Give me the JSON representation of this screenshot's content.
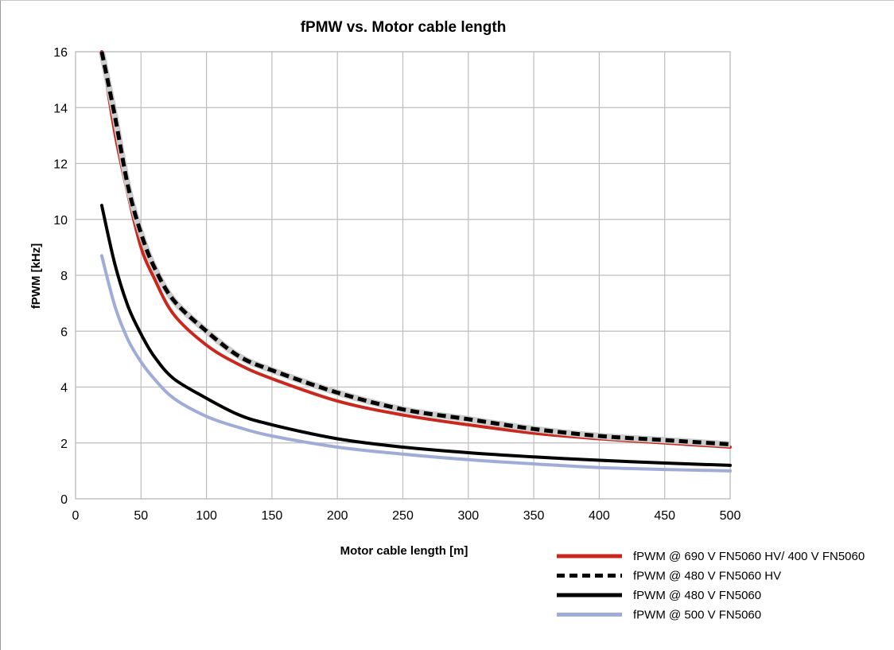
{
  "chart_data": {
    "type": "line",
    "title": "fPMW vs. Motor cable length",
    "xlabel": "Motor cable length [m]",
    "ylabel": "fPWM [kHz]",
    "xlim": [
      0,
      500
    ],
    "ylim": [
      0,
      16
    ],
    "x_ticks": [
      "0",
      "50",
      "100",
      "150",
      "200",
      "250",
      "300",
      "350",
      "400",
      "450",
      "500"
    ],
    "x_tick_values": [
      0,
      50,
      100,
      150,
      200,
      250,
      300,
      350,
      400,
      450,
      500
    ],
    "y_ticks": [
      "0",
      "2",
      "4",
      "6",
      "8",
      "10",
      "12",
      "14",
      "16"
    ],
    "y_tick_values": [
      0,
      2,
      4,
      6,
      8,
      10,
      12,
      14,
      16
    ],
    "grid": true,
    "legend_position": "bottom-right",
    "x": [
      20,
      30,
      40,
      50,
      60,
      75,
      100,
      125,
      150,
      200,
      250,
      300,
      350,
      400,
      450,
      500
    ],
    "series": [
      {
        "name": "fPWM @ 690 V FN5060 HV/ 400 V FN5060",
        "color": "#c8281e",
        "style": "solid",
        "values": [
          16.0,
          13.1,
          10.9,
          9.0,
          7.9,
          6.6,
          5.5,
          4.8,
          4.3,
          3.5,
          3.0,
          2.65,
          2.35,
          2.15,
          2.0,
          1.85
        ]
      },
      {
        "name": "fPWM @ 480 V FN5060 HV",
        "color": "#000000",
        "style": "dashed",
        "values": [
          16.0,
          13.7,
          11.2,
          9.5,
          8.3,
          7.1,
          6.0,
          5.1,
          4.6,
          3.8,
          3.2,
          2.85,
          2.5,
          2.25,
          2.1,
          1.95
        ]
      },
      {
        "name": "fPWM @ 480 V FN5060",
        "color": "#000000",
        "style": "solid",
        "values": [
          10.5,
          8.4,
          6.9,
          5.9,
          5.1,
          4.3,
          3.6,
          3.0,
          2.65,
          2.15,
          1.85,
          1.65,
          1.5,
          1.38,
          1.28,
          1.2
        ]
      },
      {
        "name": "fPWM @ 500 V FN5060",
        "color": "#a0acd8",
        "style": "solid",
        "values": [
          8.7,
          6.9,
          5.7,
          4.9,
          4.3,
          3.6,
          2.95,
          2.55,
          2.25,
          1.85,
          1.6,
          1.4,
          1.25,
          1.12,
          1.05,
          1.0
        ]
      }
    ]
  }
}
